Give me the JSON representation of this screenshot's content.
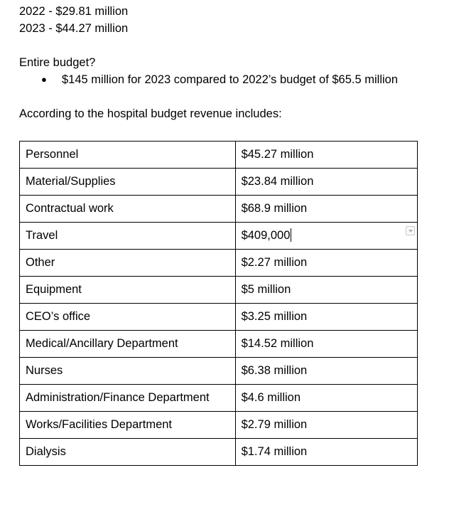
{
  "yearly": [
    "2022 - $29.81 million",
    "2023 - $44.27 million"
  ],
  "entire_budget_question": "Entire budget?",
  "bullet": "$145 million for 2023 compared to 2022’s budget of $65.5 million",
  "intro": "According to the hospital budget revenue includes:",
  "table": {
    "rows": [
      {
        "label": "Personnel",
        "value": "$45.27 million"
      },
      {
        "label": "Material/Supplies",
        "value": "$23.84 million"
      },
      {
        "label": "Contractual work",
        "value": "$68.9 million"
      },
      {
        "label": "Travel",
        "value": "$409,000"
      },
      {
        "label": "Other",
        "value": "$2.27 million"
      },
      {
        "label": "Equipment",
        "value": "$5 million"
      },
      {
        "label": "CEO’s office",
        "value": "$3.25 million"
      },
      {
        "label": "Medical/Ancillary Department",
        "value": "$14.52 million"
      },
      {
        "label": "Nurses",
        "value": "$6.38 million"
      },
      {
        "label": "Administration/Finance Department",
        "value": "$4.6 million"
      },
      {
        "label": "Works/Facilities Department",
        "value": "$2.79 million"
      },
      {
        "label": "Dialysis",
        "value": "$1.74 million"
      }
    ]
  }
}
